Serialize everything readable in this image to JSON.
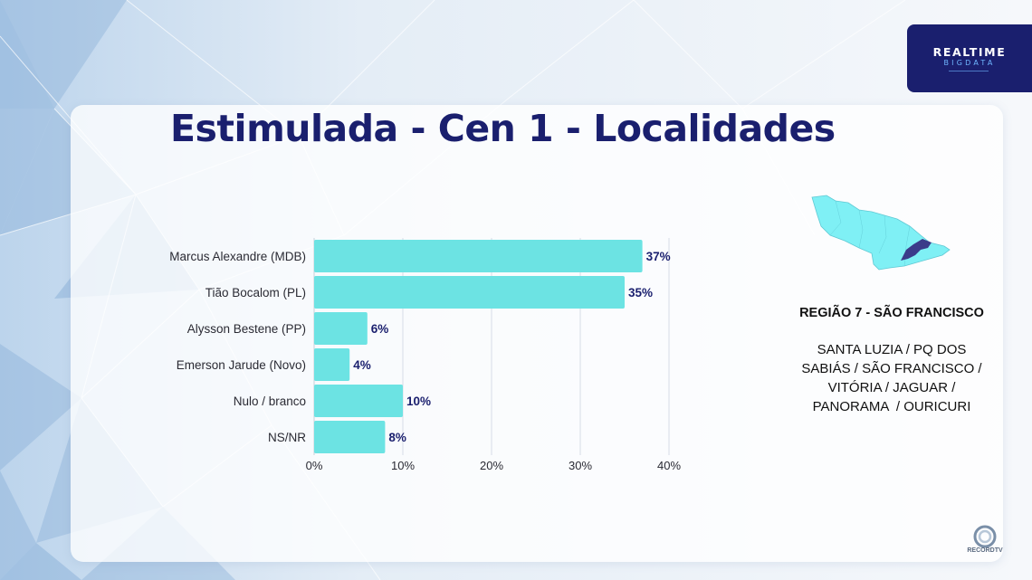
{
  "slide": {
    "title": "Estimulada - Cen 1 - Localidades",
    "brand_line1": "REALTIME",
    "brand_line2": "BIGDATA",
    "network_logo_text": "RECORDTV"
  },
  "region": {
    "title": "REGIÃO 7 - SÃO FRANCISCO",
    "lines": [
      "SANTA LUZIA / PQ DOS",
      "SABIÁS / SÃO FRANCISCO /",
      "VITÓRIA / JAGUAR /",
      "PANORAMA  / OURICURI"
    ]
  },
  "colors": {
    "bar": "#6ce3e3",
    "title": "#1a1f6e",
    "map_fill": "#7ff0f5",
    "map_highlight": "#3b3b8a"
  },
  "chart_data": {
    "type": "bar",
    "orientation": "horizontal",
    "categories": [
      "Marcus Alexandre (MDB)",
      "Tião Bocalom (PL)",
      "Alysson Bestene (PP)",
      "Emerson Jarude (Novo)",
      "Nulo / branco",
      "NS/NR"
    ],
    "values": [
      37,
      35,
      6,
      4,
      10,
      8
    ],
    "value_labels": [
      "37%",
      "35%",
      "6%",
      "4%",
      "10%",
      "8%"
    ],
    "xlim": [
      0,
      40
    ],
    "xticks": [
      "0%",
      "10%",
      "20%",
      "30%",
      "40%"
    ],
    "grid": true,
    "legend": "none"
  }
}
